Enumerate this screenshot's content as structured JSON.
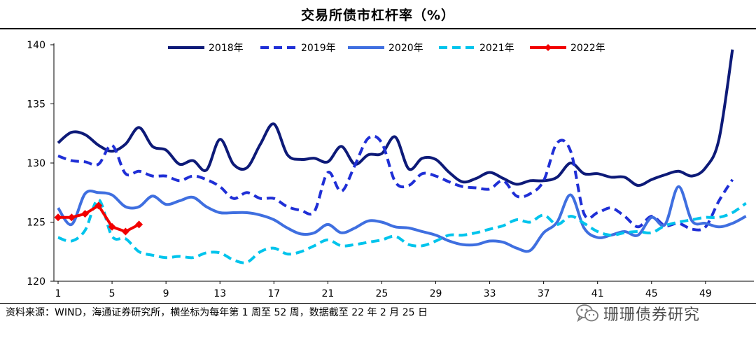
{
  "page_title": "交易所债市杠杆率（%）",
  "source_note": "资料来源：WIND，海通证券研究所，横坐标为每年第 1 周至 52 周，数据截至 22 年 2 月 25 日",
  "watermark": {
    "text": "珊珊债券研究",
    "icon": "wechat-icon"
  },
  "chart_data": {
    "type": "line",
    "title": "交易所债市杠杆率（%）",
    "xlabel": "",
    "ylabel": "",
    "xlim": [
      1,
      52
    ],
    "ylim": [
      120,
      140
    ],
    "yticks": [
      120,
      125,
      130,
      135,
      140
    ],
    "xticks": [
      1,
      5,
      9,
      13,
      17,
      21,
      25,
      29,
      33,
      37,
      41,
      45,
      49
    ],
    "legend_position": "top",
    "series": [
      {
        "name": "2018年",
        "color": "#0D1A78",
        "dash": "solid",
        "marker": false,
        "x": [
          1,
          2,
          3,
          4,
          5,
          6,
          7,
          8,
          9,
          10,
          11,
          12,
          13,
          14,
          15,
          16,
          17,
          18,
          19,
          20,
          21,
          22,
          23,
          24,
          25,
          26,
          27,
          28,
          29,
          30,
          31,
          32,
          33,
          34,
          35,
          36,
          37,
          38,
          39,
          40,
          41,
          42,
          43,
          44,
          45,
          46,
          47,
          48,
          49,
          50,
          51
        ],
        "values": [
          131.7,
          132.6,
          132.4,
          131.5,
          131.0,
          131.6,
          133.0,
          131.4,
          131.1,
          129.9,
          130.2,
          129.4,
          132.0,
          129.9,
          129.6,
          131.6,
          133.3,
          130.7,
          130.3,
          130.4,
          130.1,
          131.4,
          129.9,
          130.7,
          130.8,
          132.2,
          129.5,
          130.4,
          130.3,
          129.2,
          128.4,
          128.7,
          129.2,
          128.7,
          128.2,
          128.5,
          128.5,
          128.8,
          130.0,
          129.1,
          129.1,
          128.8,
          128.8,
          128.1,
          128.6,
          129.0,
          129.3,
          128.9,
          129.6,
          132.0,
          139.6
        ]
      },
      {
        "name": "2019年",
        "color": "#1F2FD6",
        "dash": "dashed",
        "marker": false,
        "x": [
          1,
          2,
          3,
          4,
          5,
          6,
          7,
          8,
          9,
          10,
          11,
          12,
          13,
          14,
          15,
          16,
          17,
          18,
          19,
          20,
          21,
          22,
          23,
          24,
          25,
          26,
          27,
          28,
          29,
          30,
          31,
          32,
          33,
          34,
          35,
          36,
          37,
          38,
          39,
          40,
          41,
          42,
          43,
          44,
          45,
          46,
          47,
          48,
          49,
          50,
          51
        ],
        "values": [
          130.6,
          130.2,
          130.1,
          129.9,
          131.5,
          129.1,
          129.3,
          128.9,
          128.9,
          128.5,
          128.9,
          128.6,
          128.0,
          127.0,
          127.5,
          127.0,
          127.0,
          126.3,
          126.0,
          125.9,
          129.2,
          127.6,
          129.8,
          132.1,
          131.7,
          128.4,
          128.1,
          129.1,
          128.9,
          128.4,
          128.0,
          127.9,
          127.8,
          128.5,
          127.2,
          127.4,
          128.5,
          131.7,
          131.0,
          125.7,
          125.8,
          126.2,
          125.5,
          124.6,
          125.5,
          124.7,
          124.9,
          124.4,
          124.6,
          126.8,
          128.6
        ]
      },
      {
        "name": "2020年",
        "color": "#3F6FE0",
        "dash": "solid",
        "marker": false,
        "x": [
          1,
          2,
          3,
          4,
          5,
          6,
          7,
          8,
          9,
          10,
          11,
          12,
          13,
          14,
          15,
          16,
          17,
          18,
          19,
          20,
          21,
          22,
          23,
          24,
          25,
          26,
          27,
          28,
          29,
          30,
          31,
          32,
          33,
          34,
          35,
          36,
          37,
          38,
          39,
          40,
          41,
          42,
          43,
          44,
          45,
          46,
          47,
          48,
          49,
          50,
          51,
          52
        ],
        "values": [
          126.2,
          124.8,
          127.4,
          127.5,
          127.3,
          126.3,
          126.3,
          127.2,
          126.5,
          126.8,
          127.1,
          126.3,
          125.8,
          125.8,
          125.8,
          125.6,
          125.2,
          124.5,
          124.0,
          124.1,
          124.8,
          124.1,
          124.5,
          125.1,
          125.0,
          124.6,
          124.5,
          124.2,
          123.9,
          123.4,
          123.1,
          123.1,
          123.4,
          123.3,
          122.8,
          122.6,
          124.1,
          125.0,
          127.3,
          124.5,
          123.7,
          123.9,
          124.2,
          123.9,
          125.4,
          124.8,
          128.0,
          125.1,
          124.9,
          124.6,
          124.9,
          125.5
        ]
      },
      {
        "name": "2021年",
        "color": "#00C4EC",
        "dash": "dashed",
        "marker": false,
        "x": [
          1,
          2,
          3,
          4,
          5,
          6,
          7,
          8,
          9,
          10,
          11,
          12,
          13,
          14,
          15,
          16,
          17,
          18,
          19,
          20,
          21,
          22,
          23,
          24,
          25,
          26,
          27,
          28,
          29,
          30,
          31,
          32,
          33,
          34,
          35,
          36,
          37,
          38,
          39,
          40,
          41,
          42,
          43,
          44,
          45,
          46,
          47,
          48,
          49,
          50,
          51,
          52
        ],
        "values": [
          123.7,
          123.4,
          124.3,
          126.9,
          123.8,
          123.6,
          122.5,
          122.2,
          122.0,
          122.1,
          122.0,
          122.4,
          122.4,
          121.8,
          121.6,
          122.5,
          122.8,
          122.3,
          122.5,
          123.0,
          123.5,
          123.0,
          123.1,
          123.3,
          123.5,
          123.8,
          123.1,
          123.0,
          123.4,
          123.9,
          123.9,
          124.1,
          124.4,
          124.7,
          125.2,
          125.0,
          125.6,
          124.8,
          125.5,
          124.9,
          124.2,
          123.9,
          124.1,
          124.2,
          124.1,
          124.7,
          125.0,
          125.2,
          125.4,
          125.4,
          125.8,
          126.6
        ]
      },
      {
        "name": "2022年",
        "color": "#F20000",
        "dash": "solid",
        "marker": true,
        "x": [
          1,
          2,
          3,
          4,
          5,
          6,
          7
        ],
        "values": [
          125.4,
          125.4,
          125.7,
          126.4,
          124.6,
          124.2,
          124.8
        ]
      }
    ]
  }
}
